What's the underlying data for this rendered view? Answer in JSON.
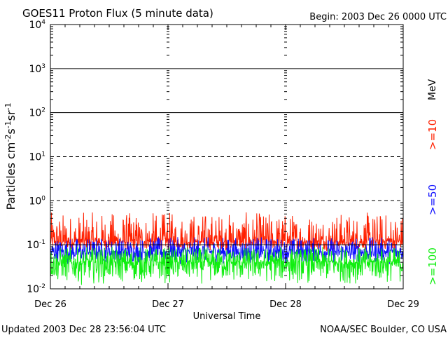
{
  "chart_data": {
    "type": "line",
    "title": "GOES11 Proton Flux (5 minute data)",
    "begin_label": "Begin: 2003 Dec 26 0000 UTC",
    "xlabel": "Universal Time",
    "ylabel_parts": {
      "base": "Particles cm",
      "e1": "-2",
      "s": "s",
      "e2": "-1",
      "sr": "sr",
      "e3": "-1"
    },
    "x_ticks": [
      "Dec 26",
      "Dec 27",
      "Dec 28",
      "Dec 29"
    ],
    "y_tick_mantissa": "10",
    "y_tick_exponents": [
      "-2",
      "-1",
      "0",
      "1",
      "2",
      "3",
      "4"
    ],
    "yscale": "log",
    "ylim": [
      0.01,
      10000
    ],
    "xlim_days": [
      0,
      3
    ],
    "alert_thresholds": [
      10,
      1
    ],
    "unit_label": "MeV",
    "series": [
      {
        "name": ">=10",
        "color": "#ff2000",
        "min": 0.07,
        "median": 0.12,
        "max": 0.55
      },
      {
        "name": ">=50",
        "color": "#1010ff",
        "min": 0.035,
        "median": 0.07,
        "max": 0.15
      },
      {
        "name": ">=100",
        "color": "#10ee10",
        "min": 0.012,
        "median": 0.04,
        "max": 0.09
      }
    ],
    "footer_left": "Updated 2003 Dec 28 23:56:04 UTC",
    "footer_right": "NOAA/SEC Boulder, CO USA"
  }
}
